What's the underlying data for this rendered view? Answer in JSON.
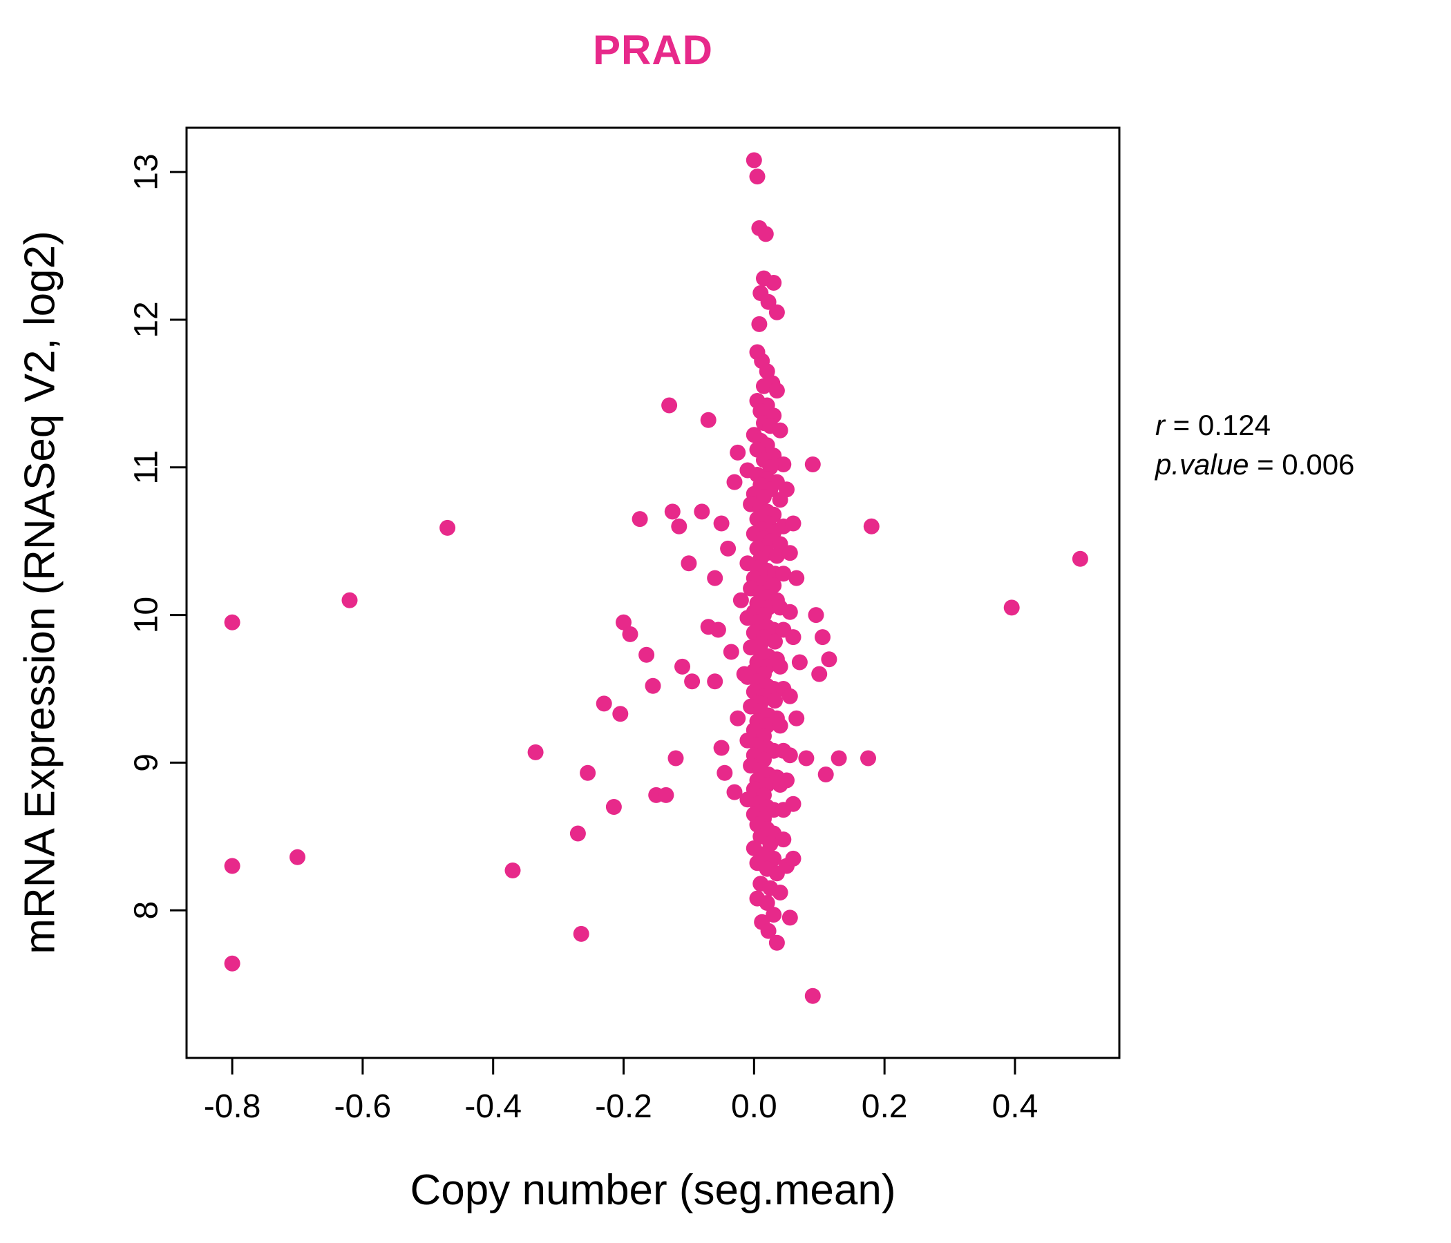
{
  "annotation": {
    "r_var": "r",
    "r_eq": " = 0.124",
    "p_var": "p.value",
    "p_eq": " = 0.006"
  },
  "chart_data": {
    "type": "scatter",
    "title": "PRAD",
    "title_color": "#E7298A",
    "point_color": "#E7298A",
    "xlabel": "Copy number (seg.mean)",
    "ylabel": "mRNA Expression (RNASeq V2, log2)",
    "r": 0.124,
    "p_value": 0.006,
    "xlim": [
      -0.87,
      0.56
    ],
    "ylim": [
      7.0,
      13.3
    ],
    "grid": false,
    "legend": "none",
    "xtick_values": [
      -0.8,
      -0.6,
      -0.4,
      -0.2,
      0.0,
      0.2,
      0.4
    ],
    "xtick_labels": [
      "-0.8",
      "-0.6",
      "-0.4",
      "-0.2",
      "0.0",
      "0.2",
      "0.4"
    ],
    "ytick_values": [
      8,
      9,
      10,
      11,
      12,
      13
    ],
    "ytick_labels": [
      "8",
      "9",
      "10",
      "11",
      "12",
      "13"
    ],
    "points": [
      [
        -0.8,
        9.95
      ],
      [
        -0.8,
        8.3
      ],
      [
        -0.8,
        7.64
      ],
      [
        -0.7,
        8.36
      ],
      [
        -0.62,
        10.1
      ],
      [
        -0.47,
        10.59
      ],
      [
        -0.37,
        8.27
      ],
      [
        -0.335,
        9.07
      ],
      [
        -0.27,
        8.52
      ],
      [
        -0.265,
        7.84
      ],
      [
        -0.255,
        8.93
      ],
      [
        -0.23,
        9.4
      ],
      [
        -0.215,
        8.7
      ],
      [
        -0.205,
        9.33
      ],
      [
        -0.2,
        9.95
      ],
      [
        -0.19,
        9.87
      ],
      [
        -0.175,
        10.65
      ],
      [
        -0.165,
        9.73
      ],
      [
        -0.155,
        9.52
      ],
      [
        -0.15,
        8.78
      ],
      [
        -0.135,
        8.78
      ],
      [
        -0.13,
        11.42
      ],
      [
        -0.125,
        10.7
      ],
      [
        -0.12,
        9.03
      ],
      [
        -0.115,
        10.6
      ],
      [
        -0.11,
        9.65
      ],
      [
        -0.1,
        10.35
      ],
      [
        -0.095,
        9.55
      ],
      [
        -0.08,
        10.7
      ],
      [
        -0.07,
        11.32
      ],
      [
        -0.07,
        9.92
      ],
      [
        -0.06,
        10.25
      ],
      [
        -0.06,
        9.55
      ],
      [
        -0.055,
        9.9
      ],
      [
        -0.05,
        10.62
      ],
      [
        -0.05,
        9.1
      ],
      [
        -0.045,
        8.93
      ],
      [
        -0.04,
        10.45
      ],
      [
        -0.035,
        9.75
      ],
      [
        -0.03,
        10.9
      ],
      [
        -0.03,
        8.8
      ],
      [
        -0.025,
        11.1
      ],
      [
        -0.025,
        9.3
      ],
      [
        -0.02,
        10.1
      ],
      [
        -0.015,
        9.6
      ],
      [
        0.0,
        13.08
      ],
      [
        0.005,
        12.97
      ],
      [
        0.008,
        12.62
      ],
      [
        0.018,
        12.58
      ],
      [
        0.015,
        12.28
      ],
      [
        0.03,
        12.25
      ],
      [
        0.01,
        12.18
      ],
      [
        0.022,
        12.12
      ],
      [
        0.035,
        12.05
      ],
      [
        0.008,
        11.97
      ],
      [
        0.005,
        11.78
      ],
      [
        0.012,
        11.72
      ],
      [
        0.02,
        11.65
      ],
      [
        0.028,
        11.57
      ],
      [
        0.015,
        11.55
      ],
      [
        0.035,
        11.52
      ],
      [
        0.005,
        11.45
      ],
      [
        0.02,
        11.42
      ],
      [
        0.01,
        11.38
      ],
      [
        0.03,
        11.35
      ],
      [
        0.015,
        11.3
      ],
      [
        0.025,
        11.28
      ],
      [
        0.04,
        11.25
      ],
      [
        0.0,
        11.22
      ],
      [
        0.01,
        11.18
      ],
      [
        0.02,
        11.15
      ],
      [
        0.005,
        11.12
      ],
      [
        0.03,
        11.08
      ],
      [
        0.015,
        11.05
      ],
      [
        0.045,
        11.02
      ],
      [
        0.09,
        11.02
      ],
      [
        0.025,
        11.0
      ],
      [
        -0.01,
        10.98
      ],
      [
        0.005,
        10.95
      ],
      [
        0.02,
        10.92
      ],
      [
        0.035,
        10.9
      ],
      [
        0.01,
        10.88
      ],
      [
        0.025,
        10.85
      ],
      [
        0.05,
        10.85
      ],
      [
        0.0,
        10.82
      ],
      [
        0.015,
        10.8
      ],
      [
        0.04,
        10.78
      ],
      [
        -0.005,
        10.75
      ],
      [
        0.01,
        10.72
      ],
      [
        0.02,
        10.7
      ],
      [
        0.03,
        10.68
      ],
      [
        0.005,
        10.65
      ],
      [
        0.022,
        10.62
      ],
      [
        0.045,
        10.6
      ],
      [
        0.06,
        10.62
      ],
      [
        0.012,
        10.58
      ],
      [
        0.03,
        10.56
      ],
      [
        0.0,
        10.55
      ],
      [
        0.015,
        10.52
      ],
      [
        0.025,
        10.5
      ],
      [
        0.04,
        10.48
      ],
      [
        0.005,
        10.45
      ],
      [
        0.02,
        10.42
      ],
      [
        0.035,
        10.4
      ],
      [
        0.055,
        10.42
      ],
      [
        0.01,
        10.38
      ],
      [
        -0.01,
        10.35
      ],
      [
        0.005,
        10.32
      ],
      [
        0.02,
        10.3
      ],
      [
        0.032,
        10.28
      ],
      [
        0.045,
        10.28
      ],
      [
        0.0,
        10.25
      ],
      [
        0.015,
        10.22
      ],
      [
        0.03,
        10.2
      ],
      [
        0.065,
        10.25
      ],
      [
        -0.005,
        10.18
      ],
      [
        0.01,
        10.15
      ],
      [
        0.02,
        10.12
      ],
      [
        0.035,
        10.1
      ],
      [
        0.005,
        10.08
      ],
      [
        0.022,
        10.05
      ],
      [
        0.04,
        10.05
      ],
      [
        0.0,
        10.02
      ],
      [
        0.015,
        10.0
      ],
      [
        0.055,
        10.02
      ],
      [
        -0.01,
        9.98
      ],
      [
        0.005,
        9.95
      ],
      [
        0.02,
        9.92
      ],
      [
        0.03,
        9.9
      ],
      [
        0.045,
        9.9
      ],
      [
        0.0,
        9.88
      ],
      [
        0.015,
        9.85
      ],
      [
        0.032,
        9.82
      ],
      [
        0.01,
        9.8
      ],
      [
        0.06,
        9.85
      ],
      [
        -0.005,
        9.78
      ],
      [
        0.01,
        9.75
      ],
      [
        0.022,
        9.72
      ],
      [
        0.035,
        9.7
      ],
      [
        0.005,
        9.68
      ],
      [
        0.02,
        9.65
      ],
      [
        0.04,
        9.65
      ],
      [
        0.0,
        9.62
      ],
      [
        0.015,
        9.6
      ],
      [
        0.07,
        9.68
      ],
      [
        -0.01,
        9.58
      ],
      [
        0.005,
        9.55
      ],
      [
        0.02,
        9.52
      ],
      [
        0.03,
        9.5
      ],
      [
        0.045,
        9.5
      ],
      [
        0.0,
        9.48
      ],
      [
        0.015,
        9.45
      ],
      [
        0.032,
        9.42
      ],
      [
        0.055,
        9.45
      ],
      [
        0.01,
        9.4
      ],
      [
        -0.005,
        9.38
      ],
      [
        0.01,
        9.35
      ],
      [
        0.022,
        9.32
      ],
      [
        0.035,
        9.3
      ],
      [
        0.005,
        9.28
      ],
      [
        0.02,
        9.25
      ],
      [
        0.04,
        9.25
      ],
      [
        0.0,
        9.22
      ],
      [
        0.065,
        9.3
      ],
      [
        0.015,
        9.18
      ],
      [
        -0.01,
        9.15
      ],
      [
        0.005,
        9.12
      ],
      [
        0.02,
        9.1
      ],
      [
        0.03,
        9.08
      ],
      [
        0.045,
        9.08
      ],
      [
        0.0,
        9.05
      ],
      [
        0.015,
        9.02
      ],
      [
        0.055,
        9.05
      ],
      [
        0.08,
        9.03
      ],
      [
        -0.005,
        8.98
      ],
      [
        0.01,
        8.95
      ],
      [
        0.022,
        8.92
      ],
      [
        0.035,
        8.9
      ],
      [
        0.005,
        8.88
      ],
      [
        0.02,
        8.85
      ],
      [
        0.04,
        8.85
      ],
      [
        0.0,
        8.82
      ],
      [
        0.05,
        8.88
      ],
      [
        0.015,
        8.78
      ],
      [
        -0.01,
        8.75
      ],
      [
        0.005,
        8.72
      ],
      [
        0.02,
        8.7
      ],
      [
        0.03,
        8.68
      ],
      [
        0.045,
        8.68
      ],
      [
        0.0,
        8.65
      ],
      [
        0.015,
        8.62
      ],
      [
        0.06,
        8.72
      ],
      [
        0.005,
        8.58
      ],
      [
        0.02,
        8.55
      ],
      [
        0.03,
        8.52
      ],
      [
        0.01,
        8.5
      ],
      [
        0.025,
        8.45
      ],
      [
        0.045,
        8.48
      ],
      [
        0.0,
        8.42
      ],
      [
        0.015,
        8.38
      ],
      [
        0.03,
        8.35
      ],
      [
        0.005,
        8.32
      ],
      [
        0.02,
        8.28
      ],
      [
        0.05,
        8.3
      ],
      [
        0.035,
        8.25
      ],
      [
        0.06,
        8.35
      ],
      [
        0.01,
        8.18
      ],
      [
        0.025,
        8.15
      ],
      [
        0.04,
        8.12
      ],
      [
        0.005,
        8.08
      ],
      [
        0.02,
        8.05
      ],
      [
        0.03,
        7.97
      ],
      [
        0.012,
        7.92
      ],
      [
        0.055,
        7.95
      ],
      [
        0.022,
        7.86
      ],
      [
        0.035,
        7.78
      ],
      [
        0.09,
        7.42
      ],
      [
        0.095,
        10.0
      ],
      [
        0.1,
        9.6
      ],
      [
        0.105,
        9.85
      ],
      [
        0.115,
        9.7
      ],
      [
        0.13,
        9.03
      ],
      [
        0.11,
        8.92
      ],
      [
        0.175,
        9.03
      ],
      [
        0.18,
        10.6
      ],
      [
        0.395,
        10.05
      ],
      [
        0.5,
        10.38
      ]
    ]
  }
}
